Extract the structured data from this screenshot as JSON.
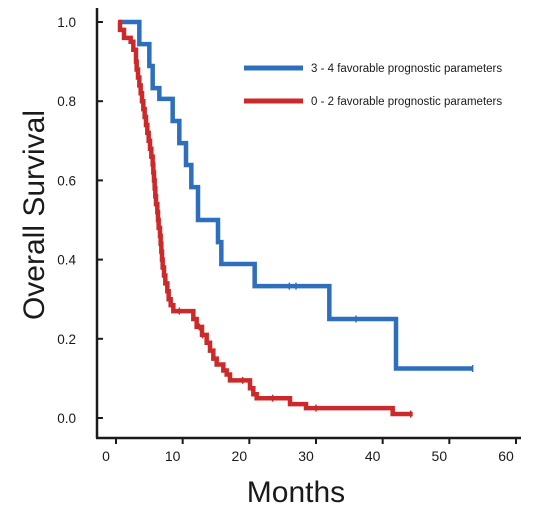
{
  "chart_data": {
    "type": "line",
    "subtype": "kaplan-meier step",
    "title": "",
    "xlabel": "Months",
    "ylabel": "Overall Survival",
    "xlim": [
      0,
      60
    ],
    "ylim": [
      0,
      1.0
    ],
    "x_ticks": [
      "0",
      "10",
      "20",
      "30",
      "40",
      "50",
      "60"
    ],
    "y_ticks": [
      "0.0",
      "0.2",
      "0.4",
      "0.6",
      "0.8",
      "1.0"
    ],
    "grid": false,
    "legend_position": "top-right",
    "series": [
      {
        "name": "3 - 4 favorable prognostic parameters",
        "color": "#2e6fbd",
        "steps": [
          [
            0.5,
            1.0
          ],
          [
            3.5,
            0.944
          ],
          [
            5,
            0.889
          ],
          [
            5.5,
            0.833
          ],
          [
            6.5,
            0.806
          ],
          [
            8.5,
            0.75
          ],
          [
            9.5,
            0.694
          ],
          [
            10.5,
            0.639
          ],
          [
            11.3,
            0.583
          ],
          [
            12.3,
            0.5
          ],
          [
            15.3,
            0.444
          ],
          [
            15.8,
            0.389
          ],
          [
            20.8,
            0.333
          ],
          [
            32,
            0.25
          ],
          [
            42,
            0.125
          ]
        ],
        "end_x": 53.5,
        "censored": [
          [
            26,
            0.333
          ],
          [
            27,
            0.333
          ],
          [
            36,
            0.25
          ],
          [
            53.5,
            0.125
          ]
        ]
      },
      {
        "name": "0 - 2 favorable prognostic parameters",
        "color": "#cc2a2a",
        "steps": [
          [
            0.3,
            1.0
          ],
          [
            0.6,
            0.98
          ],
          [
            1.2,
            0.96
          ],
          [
            2.2,
            0.95
          ],
          [
            2.6,
            0.93
          ],
          [
            3.0,
            0.9
          ],
          [
            3.1,
            0.88
          ],
          [
            3.3,
            0.86
          ],
          [
            3.5,
            0.84
          ],
          [
            3.7,
            0.82
          ],
          [
            3.9,
            0.8
          ],
          [
            4.1,
            0.78
          ],
          [
            4.3,
            0.76
          ],
          [
            4.5,
            0.74
          ],
          [
            4.7,
            0.72
          ],
          [
            4.9,
            0.7
          ],
          [
            5.1,
            0.68
          ],
          [
            5.3,
            0.66
          ],
          [
            5.5,
            0.64
          ],
          [
            5.6,
            0.62
          ],
          [
            5.7,
            0.6
          ],
          [
            5.8,
            0.58
          ],
          [
            5.9,
            0.56
          ],
          [
            6.0,
            0.54
          ],
          [
            6.2,
            0.52
          ],
          [
            6.3,
            0.5
          ],
          [
            6.4,
            0.48
          ],
          [
            6.6,
            0.46
          ],
          [
            6.7,
            0.44
          ],
          [
            6.8,
            0.42
          ],
          [
            6.9,
            0.4
          ],
          [
            7.0,
            0.38
          ],
          [
            7.2,
            0.36
          ],
          [
            7.4,
            0.34
          ],
          [
            7.7,
            0.32
          ],
          [
            7.9,
            0.3
          ],
          [
            8.2,
            0.285
          ],
          [
            8.6,
            0.27
          ],
          [
            11.6,
            0.25
          ],
          [
            12.1,
            0.23
          ],
          [
            12.9,
            0.21
          ],
          [
            13.6,
            0.19
          ],
          [
            14.1,
            0.17
          ],
          [
            14.6,
            0.15
          ],
          [
            15.1,
            0.135
          ],
          [
            16.1,
            0.12
          ],
          [
            16.6,
            0.11
          ],
          [
            17.1,
            0.095
          ],
          [
            20.1,
            0.075
          ],
          [
            20.6,
            0.06
          ],
          [
            21.1,
            0.05
          ],
          [
            26.1,
            0.035
          ],
          [
            28.5,
            0.025
          ],
          [
            41.5,
            0.01
          ]
        ],
        "end_x": 44.5,
        "censored": [
          [
            9.5,
            0.27
          ],
          [
            12.5,
            0.23
          ],
          [
            13.0,
            0.21
          ],
          [
            19.0,
            0.095
          ],
          [
            23.5,
            0.05
          ],
          [
            30,
            0.025
          ],
          [
            44.2,
            0.01
          ]
        ]
      }
    ]
  }
}
